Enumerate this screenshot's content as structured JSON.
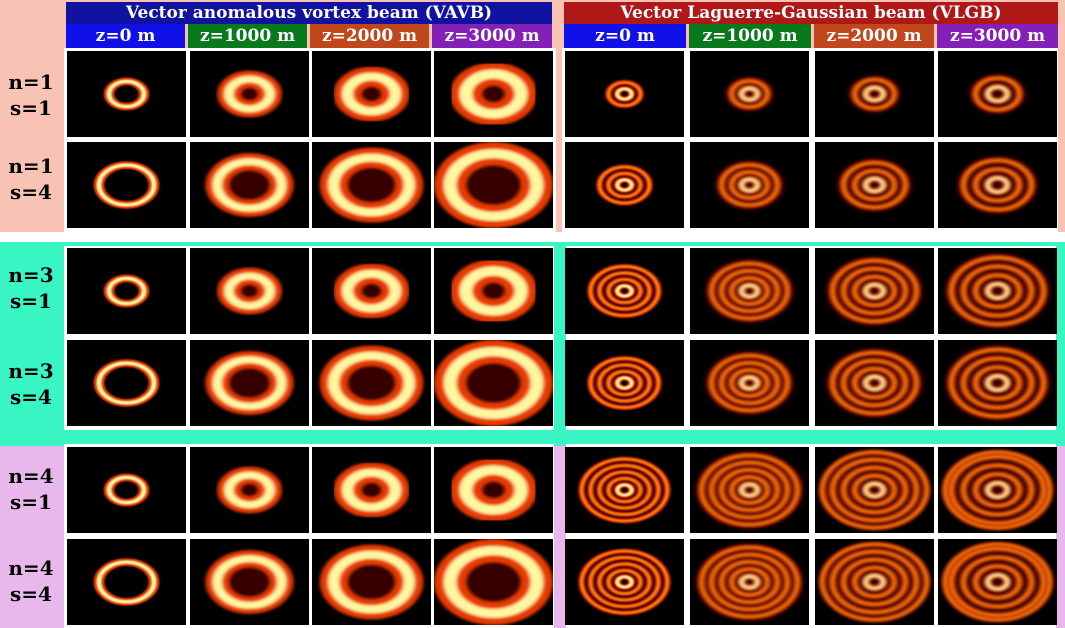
{
  "figure": {
    "bands": [
      {
        "color": "#f8c3b4",
        "rows": [
          {
            "n": "n=1",
            "s": "s=1"
          },
          {
            "n": "n=1",
            "s": "s=4"
          }
        ]
      },
      {
        "color": "#39f4c3",
        "rows": [
          {
            "n": "n=3",
            "s": "s=1"
          },
          {
            "n": "n=3",
            "s": "s=4"
          }
        ]
      },
      {
        "color": "#e8b8ec",
        "rows": [
          {
            "n": "n=4",
            "s": "s=1"
          },
          {
            "n": "n=4",
            "s": "s=4"
          }
        ]
      }
    ],
    "groups": [
      {
        "title": "Vector anomalous vortex beam (VAVB)",
        "title_color": "#1212a0"
      },
      {
        "title": "Vector Laguerre-Gaussian beam (VLGB)",
        "title_color": "#b01818"
      }
    ],
    "z_columns": [
      {
        "label": "z=0 m",
        "color": "#1010e8"
      },
      {
        "label": "z=1000 m",
        "color": "#087a1c"
      },
      {
        "label": "z=2000 m",
        "color": "#c0461c"
      },
      {
        "label": "z=3000 m",
        "color": "#8420b8"
      }
    ]
  }
}
